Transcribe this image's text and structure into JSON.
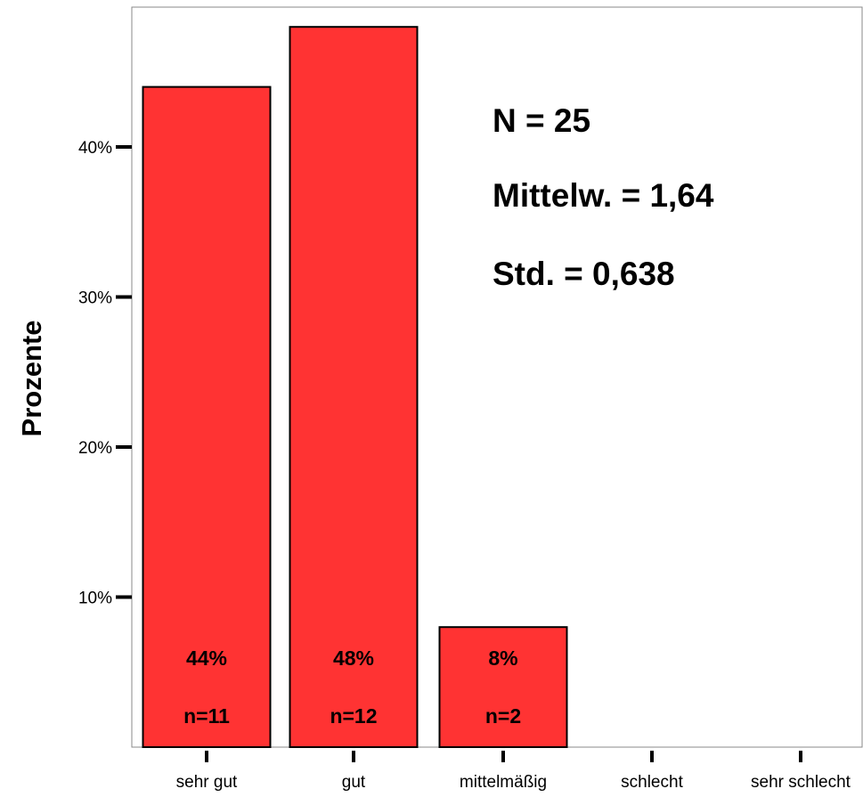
{
  "chart_data": {
    "type": "bar",
    "categories": [
      "sehr gut",
      "gut",
      "mittelmäßig",
      "schlecht",
      "sehr schlecht"
    ],
    "values": [
      44,
      48,
      8,
      0,
      0
    ],
    "counts": [
      11,
      12,
      2,
      0,
      0
    ],
    "percent_labels": [
      "44%",
      "48%",
      "8%"
    ],
    "count_labels": [
      "n=11",
      "n=12",
      "n=2"
    ],
    "ylabel": "Prozente",
    "xlabel": "",
    "ylim": [
      0,
      50
    ],
    "yticks": [
      10,
      20,
      30,
      40
    ],
    "ytick_labels": [
      "10%",
      "20%",
      "30%",
      "40%"
    ],
    "grid": false,
    "bar_color": "#ff3333",
    "stats": [
      "N = 25",
      "Mittelw. = 1,64",
      "Std. = 0,638"
    ]
  }
}
